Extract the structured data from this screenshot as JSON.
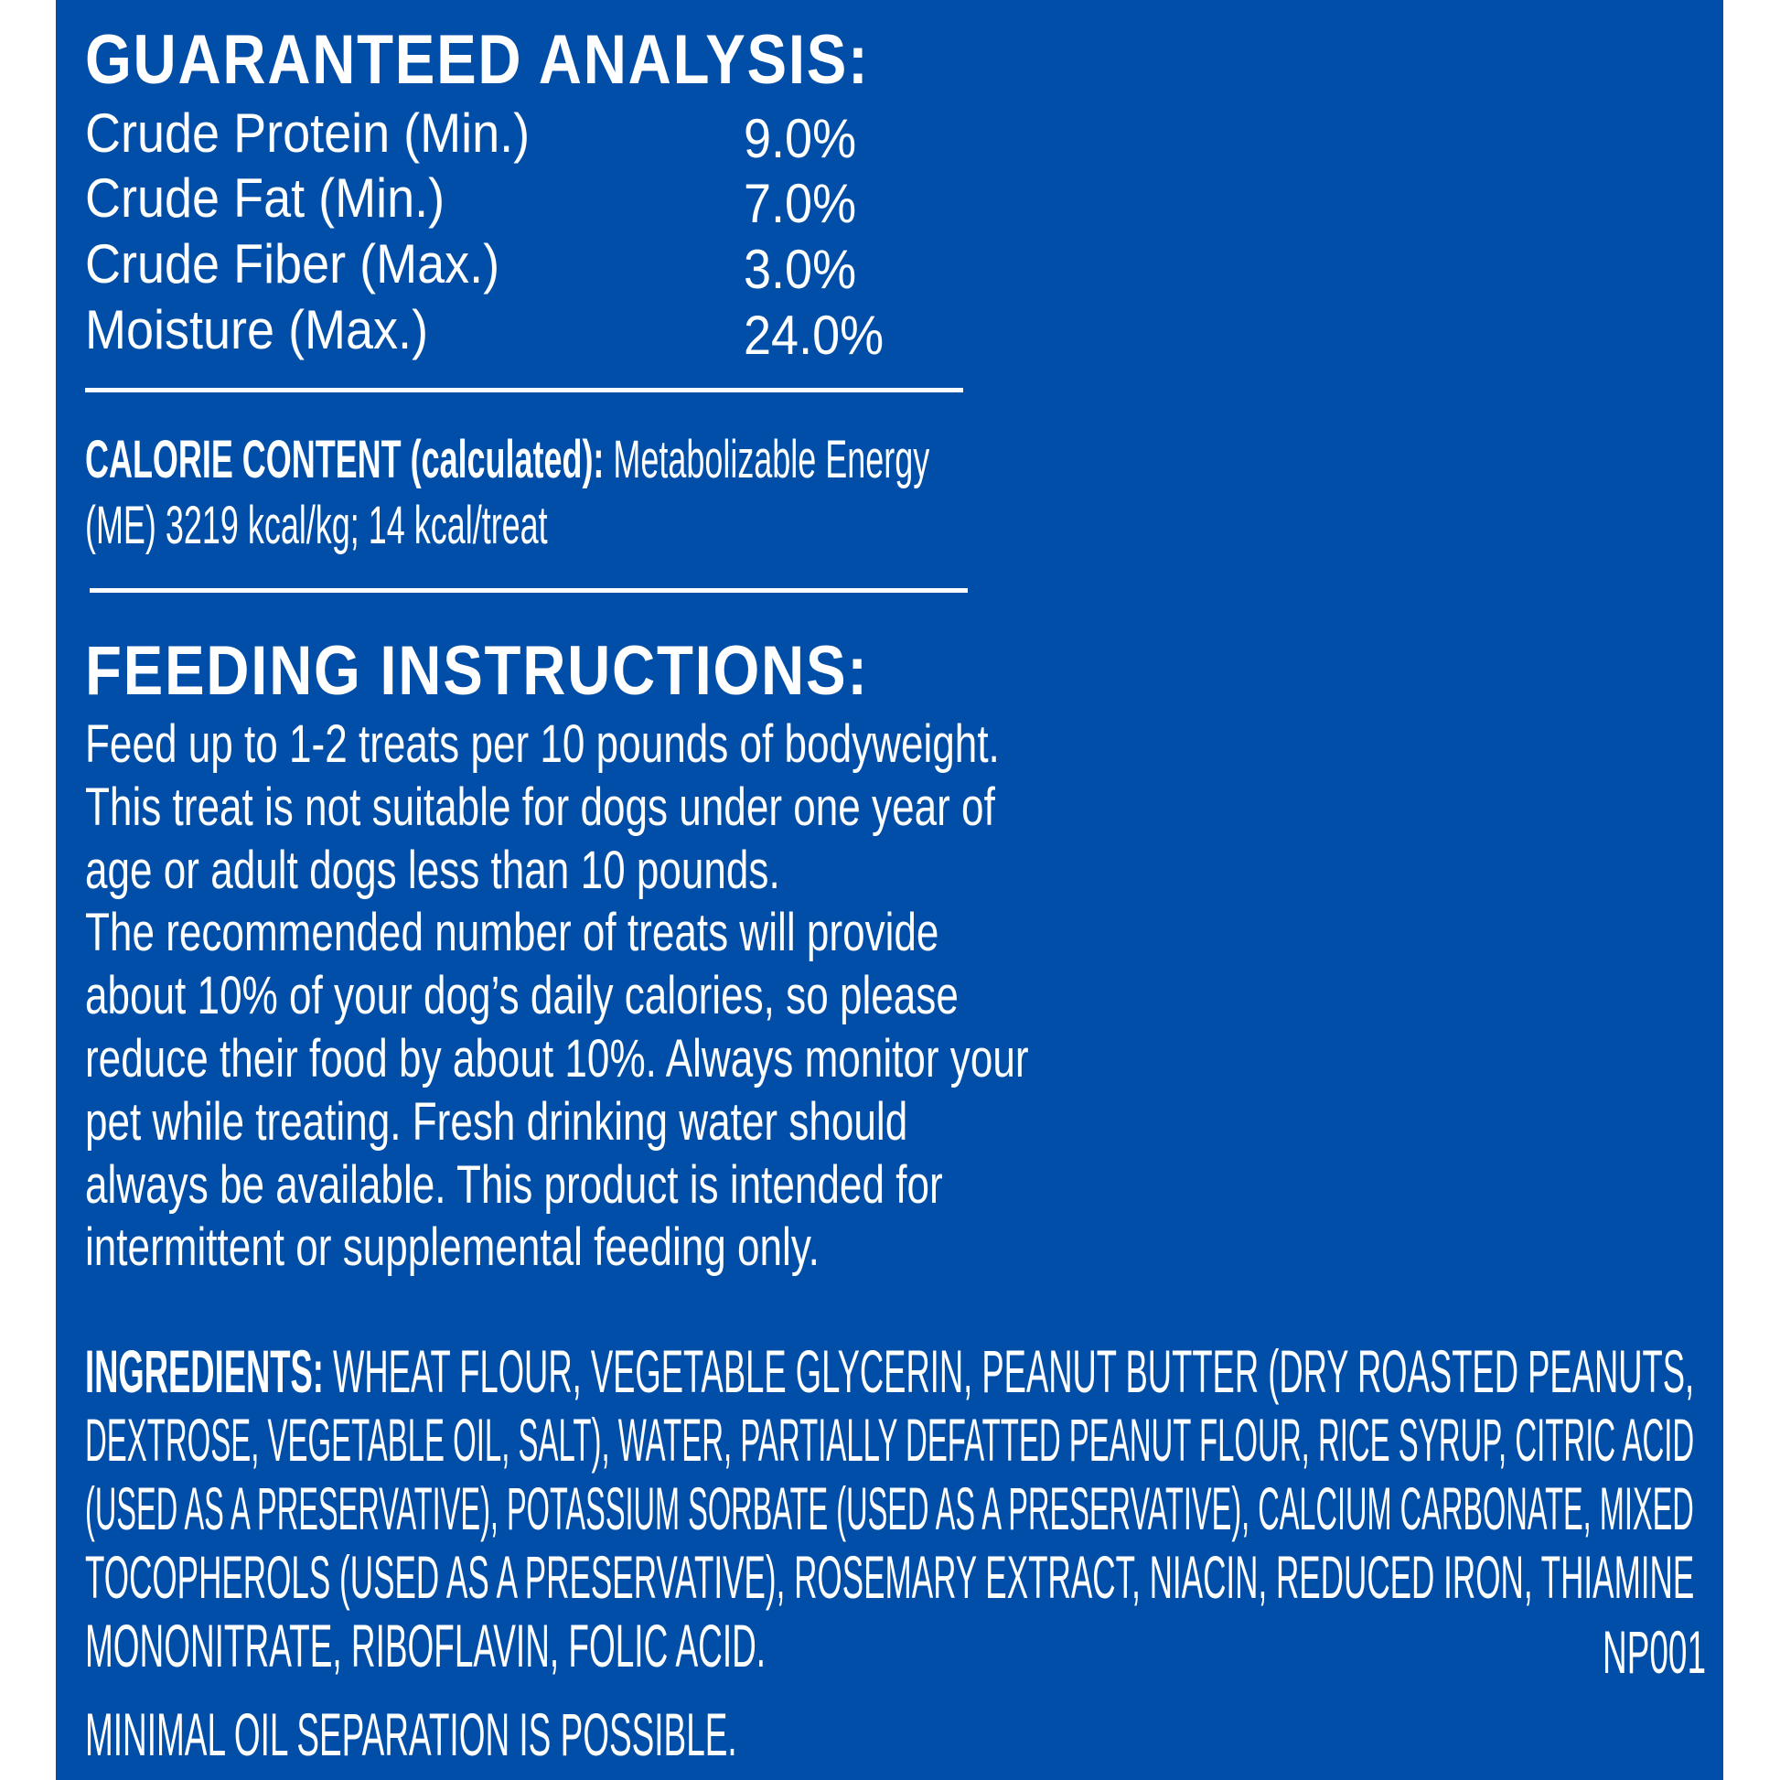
{
  "colors": {
    "background": "#004ea8",
    "text": "#ffffff",
    "margin": "#ffffff"
  },
  "guaranteed_analysis": {
    "title": "GUARANTEED ANALYSIS:",
    "rows": [
      {
        "label": "Crude Protein (Min.)",
        "value": "9.0%"
      },
      {
        "label": "Crude Fat (Min.)",
        "value": "7.0%"
      },
      {
        "label": "Crude Fiber (Max.)",
        "value": "3.0%"
      },
      {
        "label": "Moisture (Max.)",
        "value": "24.0%"
      }
    ]
  },
  "calorie_content": {
    "label": "CALORIE CONTENT (calculated):",
    "line1_text": " Metabolizable Energy",
    "line2": "(ME) 3219 kcal/kg; 14 kcal/treat"
  },
  "feeding_instructions": {
    "title": "FEEDING INSTRUCTIONS:",
    "lines": [
      "Feed up to 1-2 treats per 10 pounds of bodyweight.",
      "This treat is not suitable for dogs under one year of",
      "age or adult dogs less than 10 pounds.",
      "The recommended number of treats will provide",
      "about 10% of your dog’s daily calories, so please",
      "reduce their food by about 10%. Always monitor your",
      "pet while treating. Fresh drinking water should",
      "always be available. This product is intended for",
      "intermittent or supplemental feeding only."
    ]
  },
  "ingredients": {
    "label": "INGREDIENTS:",
    "lines": [
      " WHEAT FLOUR, VEGETABLE GLYCERIN, PEANUT BUTTER (DRY ROASTED PEANUTS,",
      "DEXTROSE, VEGETABLE OIL, SALT), WATER, PARTIALLY DEFATTED PEANUT FLOUR, RICE SYRUP, CITRIC ACID",
      "(USED AS A PRESERVATIVE), POTASSIUM SORBATE (USED AS A PRESERVATIVE), CALCIUM CARBONATE, MIXED",
      "TOCOPHEROLS (USED AS A PRESERVATIVE), ROSEMARY EXTRACT, NIACIN, REDUCED IRON, THIAMINE",
      "MONONITRATE, RIBOFLAVIN, FOLIC ACID."
    ],
    "code": "NP001"
  },
  "note": "MINIMAL OIL SEPARATION IS POSSIBLE."
}
